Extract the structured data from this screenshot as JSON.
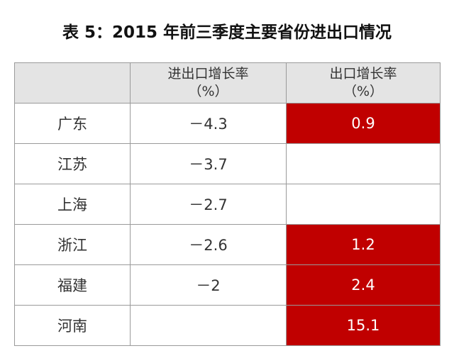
{
  "title": "表 5：2015 年前三季度主要省份进出口情况",
  "table": {
    "header": [
      {
        "line1": "进出口增长率",
        "line2": "（%）"
      },
      {
        "line1": "出口增长率",
        "line2": "（%）"
      }
    ],
    "rows": [
      {
        "province": "广东",
        "total": "－4.3",
        "export": "0.9"
      },
      {
        "province": "江苏",
        "total": "－3.7"
      },
      {
        "province": "上海",
        "total": "－2.7"
      },
      {
        "province": "浙江",
        "total": "－2.6",
        "export": "1.2"
      },
      {
        "province": "福建",
        "total": "－2",
        "export": "2.4"
      },
      {
        "province": "河南",
        "export": "15.1"
      }
    ],
    "highlight_color": "#c00000"
  }
}
